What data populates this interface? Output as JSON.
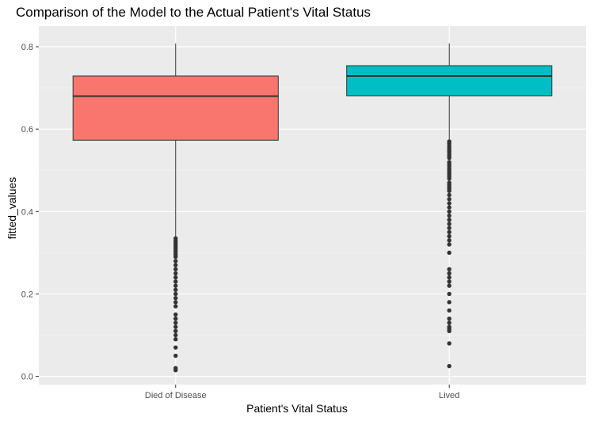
{
  "chart_data": {
    "type": "boxplot",
    "title": "Comparison of the Model to the Actual Patient's Vital Status",
    "xlabel": "Patient's Vital Status",
    "ylabel": "fitted_values",
    "ylim": [
      -0.02,
      0.85
    ],
    "y_ticks": [
      0.0,
      0.2,
      0.4,
      0.6,
      0.8
    ],
    "y_tick_labels": [
      "0.0",
      "0.2",
      "0.4",
      "0.6",
      "0.8"
    ],
    "categories": [
      "Died of Disease",
      "Lived"
    ],
    "grid": true,
    "legend": "none",
    "boxes": [
      {
        "category": "Died of Disease",
        "color": "#F8766D",
        "whisker_low": 0.34,
        "q1": 0.573,
        "median": 0.68,
        "q3": 0.729,
        "whisker_high": 0.808,
        "outliers": [
          0.335,
          0.33,
          0.325,
          0.32,
          0.315,
          0.31,
          0.305,
          0.3,
          0.295,
          0.29,
          0.28,
          0.27,
          0.26,
          0.25,
          0.24,
          0.23,
          0.22,
          0.21,
          0.2,
          0.19,
          0.18,
          0.17,
          0.15,
          0.14,
          0.13,
          0.12,
          0.11,
          0.1,
          0.09,
          0.07,
          0.05,
          0.02,
          0.015
        ]
      },
      {
        "category": "Lived",
        "color": "#00BFC4",
        "whisker_low": 0.575,
        "q1": 0.681,
        "median": 0.729,
        "q3": 0.754,
        "whisker_high": 0.808,
        "outliers": [
          0.57,
          0.565,
          0.56,
          0.555,
          0.55,
          0.545,
          0.54,
          0.535,
          0.53,
          0.52,
          0.515,
          0.51,
          0.505,
          0.5,
          0.495,
          0.49,
          0.485,
          0.48,
          0.47,
          0.465,
          0.46,
          0.455,
          0.45,
          0.44,
          0.43,
          0.42,
          0.41,
          0.4,
          0.39,
          0.38,
          0.37,
          0.36,
          0.35,
          0.34,
          0.33,
          0.32,
          0.3,
          0.26,
          0.25,
          0.24,
          0.23,
          0.22,
          0.2,
          0.18,
          0.16,
          0.14,
          0.13,
          0.12,
          0.115,
          0.11,
          0.08,
          0.025
        ]
      }
    ]
  }
}
